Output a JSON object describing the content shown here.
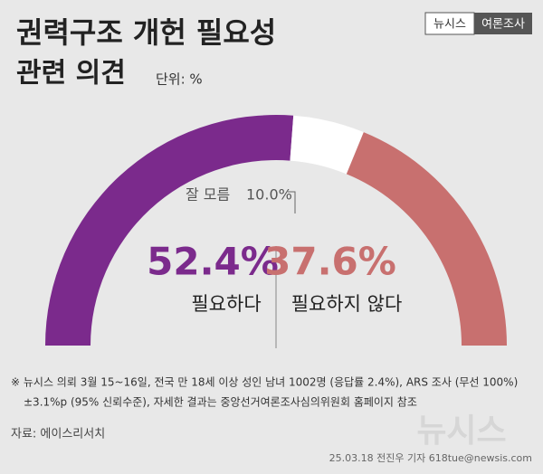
{
  "chart_data": {
    "type": "halfdonut",
    "title": [
      "권력구조 개헌 필요성",
      "관련 의견"
    ],
    "unit": "단위: %",
    "badge": [
      "뉴시스",
      "여론조사"
    ],
    "categories": [
      "필요하다",
      "잘 모름",
      "필요하지 않다"
    ],
    "values": [
      52.4,
      10.0,
      37.6
    ],
    "value_labels": [
      "52.4%",
      "10.0%",
      "37.6%"
    ],
    "colors": [
      "#7b2a8c",
      "#ffffff",
      "#c8706f"
    ],
    "notes": [
      "※ 뉴시스 의뢰 3월 15~16일, 전국 만 18세 이상 성인 남녀 1002명 (응답률 2.4%), ARS 조사 (무선 100%)",
      "±3.1%p (95% 신뢰수준), 자세한 결과는 중앙선거여론조사심의위원회 홈페이지 참조"
    ],
    "source": "자료: 에이스리서치",
    "watermark": "뉴시스",
    "credit": "25.03.18 전진우 기자 618tue@newsis.com"
  }
}
